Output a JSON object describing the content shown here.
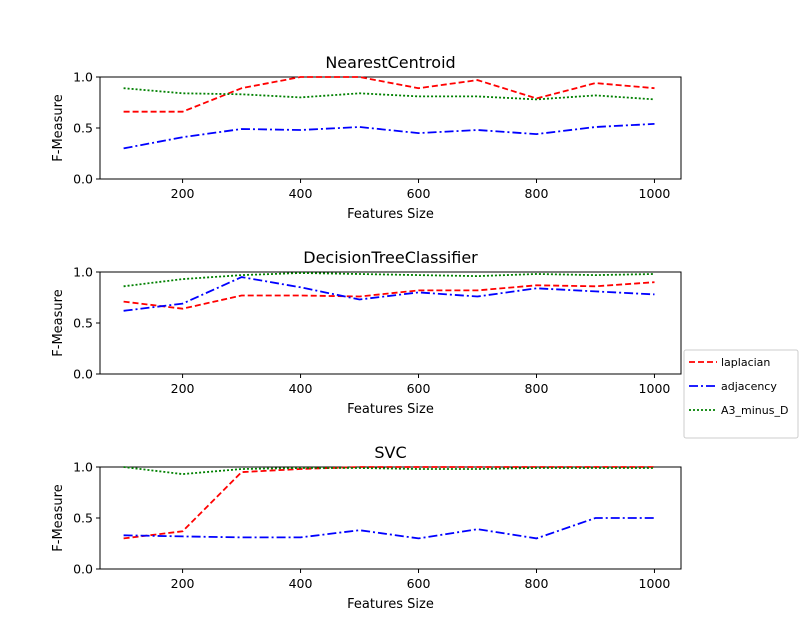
{
  "chart_data": [
    {
      "type": "line",
      "title": "NearestCentroid",
      "xlabel": "Features Size",
      "ylabel": "F-Measure",
      "xlim": [
        60,
        1045
      ],
      "ylim": [
        0.0,
        1.0
      ],
      "xticks": [
        200,
        400,
        600,
        800,
        1000
      ],
      "yticks": [
        0.0,
        0.5,
        1.0
      ],
      "x": [
        100,
        200,
        300,
        400,
        500,
        600,
        700,
        800,
        900,
        1000
      ],
      "series": [
        {
          "name": "laplacian",
          "color": "#ff0000",
          "dash": "dashed",
          "values": [
            0.66,
            0.66,
            0.89,
            1.0,
            1.0,
            0.89,
            0.97,
            0.79,
            0.94,
            0.89
          ]
        },
        {
          "name": "adjacency",
          "color": "#0000ff",
          "dash": "dashdot",
          "values": [
            0.3,
            0.41,
            0.49,
            0.48,
            0.51,
            0.45,
            0.48,
            0.44,
            0.51,
            0.54
          ]
        },
        {
          "name": "A3_minus_D",
          "color": "#008000",
          "dash": "dotted",
          "values": [
            0.89,
            0.84,
            0.83,
            0.8,
            0.84,
            0.81,
            0.81,
            0.78,
            0.82,
            0.78
          ]
        }
      ]
    },
    {
      "type": "line",
      "title": "DecisionTreeClassifier",
      "xlabel": "Features Size",
      "ylabel": "F-Measure",
      "xlim": [
        60,
        1045
      ],
      "ylim": [
        0.0,
        1.0
      ],
      "xticks": [
        200,
        400,
        600,
        800,
        1000
      ],
      "yticks": [
        0.0,
        0.5,
        1.0
      ],
      "x": [
        100,
        200,
        300,
        400,
        500,
        600,
        700,
        800,
        900,
        1000
      ],
      "series": [
        {
          "name": "laplacian",
          "color": "#ff0000",
          "dash": "dashed",
          "values": [
            0.71,
            0.64,
            0.77,
            0.77,
            0.76,
            0.82,
            0.82,
            0.87,
            0.86,
            0.9
          ]
        },
        {
          "name": "adjacency",
          "color": "#0000ff",
          "dash": "dashdot",
          "values": [
            0.62,
            0.69,
            0.95,
            0.85,
            0.73,
            0.8,
            0.76,
            0.84,
            0.81,
            0.78
          ]
        },
        {
          "name": "A3_minus_D",
          "color": "#008000",
          "dash": "dotted",
          "values": [
            0.86,
            0.93,
            0.97,
            0.99,
            0.98,
            0.97,
            0.96,
            0.98,
            0.97,
            0.98
          ]
        }
      ]
    },
    {
      "type": "line",
      "title": "SVC",
      "xlabel": "Features Size",
      "ylabel": "F-Measure",
      "xlim": [
        60,
        1045
      ],
      "ylim": [
        0.0,
        1.0
      ],
      "xticks": [
        200,
        400,
        600,
        800,
        1000
      ],
      "yticks": [
        0.0,
        0.5,
        1.0
      ],
      "x": [
        100,
        200,
        300,
        400,
        500,
        600,
        700,
        800,
        900,
        1000
      ],
      "series": [
        {
          "name": "laplacian",
          "color": "#ff0000",
          "dash": "dashed",
          "values": [
            0.3,
            0.37,
            0.95,
            0.98,
            1.0,
            1.0,
            1.0,
            1.0,
            1.0,
            1.0
          ]
        },
        {
          "name": "adjacency",
          "color": "#0000ff",
          "dash": "dashdot",
          "values": [
            0.33,
            0.32,
            0.31,
            0.31,
            0.38,
            0.3,
            0.39,
            0.3,
            0.5,
            0.5
          ]
        },
        {
          "name": "A3_minus_D",
          "color": "#008000",
          "dash": "dotted",
          "values": [
            1.0,
            0.93,
            0.98,
            0.99,
            0.99,
            0.98,
            0.98,
            0.99,
            0.99,
            0.99
          ]
        }
      ]
    }
  ],
  "legend": {
    "placement": "right",
    "entries": [
      {
        "label": "laplacian",
        "color": "#ff0000",
        "dash": "dashed"
      },
      {
        "label": "adjacency",
        "color": "#0000ff",
        "dash": "dashdot"
      },
      {
        "label": "A3_minus_D",
        "color": "#008000",
        "dash": "dotted"
      }
    ]
  }
}
